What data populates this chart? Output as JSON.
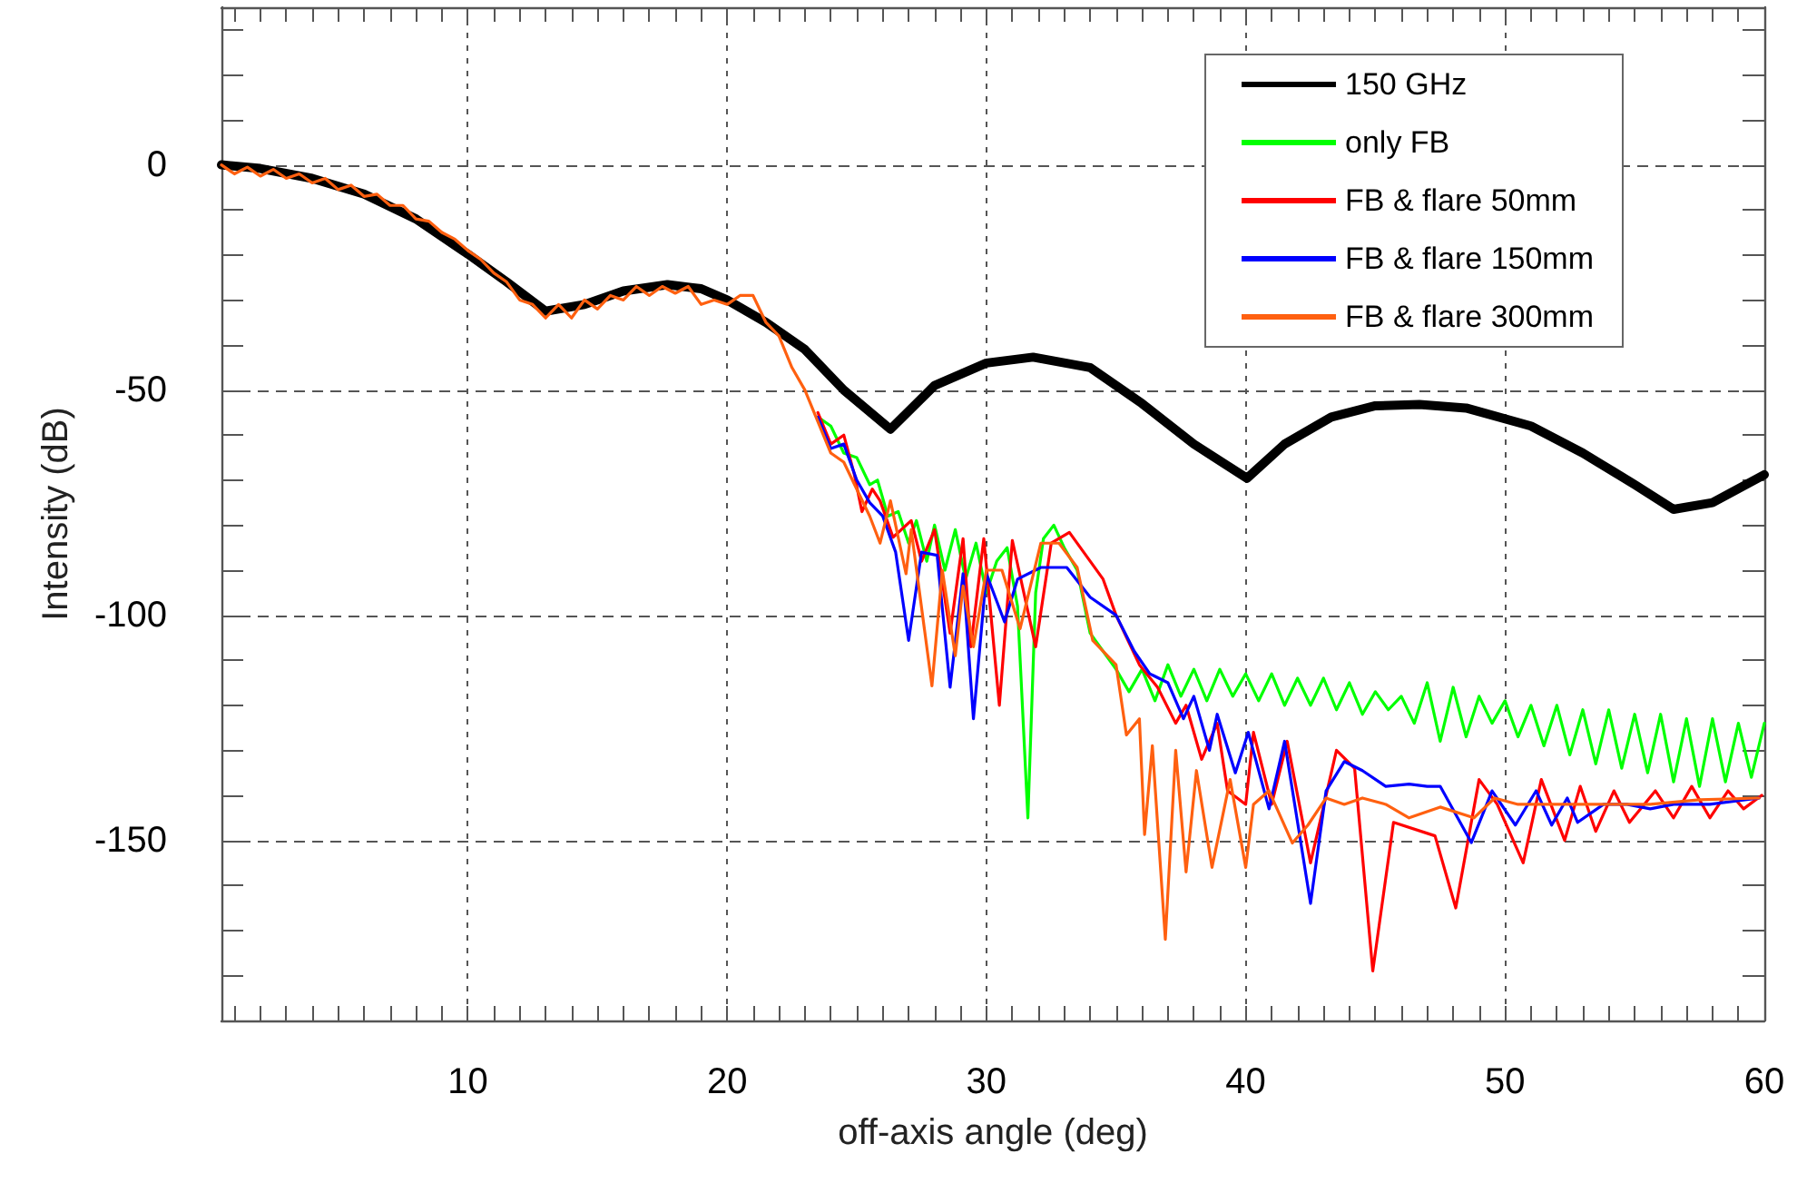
{
  "chart_data": {
    "type": "line",
    "xlabel": "off-axis angle (deg)",
    "ylabel": "Intensity (dB)",
    "xlim": [
      0.5,
      60
    ],
    "ylim": [
      -190,
      35
    ],
    "xticks": [
      {
        "value": 1,
        "label": null
      },
      {
        "value": 2,
        "label": null
      },
      {
        "value": 3,
        "label": null
      },
      {
        "value": 4,
        "label": null
      },
      {
        "value": 5,
        "label": null
      },
      {
        "value": 6,
        "label": null
      },
      {
        "value": 7,
        "label": null
      },
      {
        "value": 8,
        "label": null
      },
      {
        "value": 9,
        "label": null
      },
      10,
      {
        "value": 11,
        "label": null
      },
      {
        "value": 12,
        "label": null
      },
      {
        "value": 13,
        "label": null
      },
      {
        "value": 14,
        "label": null
      },
      {
        "value": 15,
        "label": null
      },
      {
        "value": 16,
        "label": null
      },
      {
        "value": 17,
        "label": null
      },
      {
        "value": 18,
        "label": null
      },
      {
        "value": 19,
        "label": null
      },
      20,
      {
        "value": 21,
        "label": null
      },
      {
        "value": 22,
        "label": null
      },
      {
        "value": 23,
        "label": null
      },
      {
        "value": 24,
        "label": null
      },
      {
        "value": 25,
        "label": null
      },
      {
        "value": 26,
        "label": null
      },
      {
        "value": 27,
        "label": null
      },
      {
        "value": 28,
        "label": null
      },
      {
        "value": 29,
        "label": null
      },
      30,
      {
        "value": 31,
        "label": null
      },
      {
        "value": 32,
        "label": null
      },
      {
        "value": 33,
        "label": null
      },
      {
        "value": 34,
        "label": null
      },
      {
        "value": 35,
        "label": null
      },
      {
        "value": 36,
        "label": null
      },
      {
        "value": 37,
        "label": null
      },
      {
        "value": 38,
        "label": null
      },
      {
        "value": 39,
        "label": null
      },
      40,
      {
        "value": 41,
        "label": null
      },
      {
        "value": 42,
        "label": null
      },
      {
        "value": 43,
        "label": null
      },
      {
        "value": 44,
        "label": null
      },
      {
        "value": 45,
        "label": null
      },
      {
        "value": 46,
        "label": null
      },
      {
        "value": 47,
        "label": null
      },
      {
        "value": 48,
        "label": null
      },
      {
        "value": 49,
        "label": null
      },
      50,
      {
        "value": 51,
        "label": null
      },
      {
        "value": 52,
        "label": null
      },
      {
        "value": 53,
        "label": null
      },
      {
        "value": 54,
        "label": null
      },
      {
        "value": 55,
        "label": null
      },
      {
        "value": 56,
        "label": null
      },
      {
        "value": 57,
        "label": null
      },
      {
        "value": 58,
        "label": null
      },
      {
        "value": 59,
        "label": null
      },
      60
    ],
    "yticks": [
      {
        "value": -180,
        "label": null
      },
      {
        "value": -170,
        "label": null
      },
      {
        "value": -160,
        "label": null
      },
      -150,
      {
        "value": -140,
        "label": null
      },
      {
        "value": -130,
        "label": null
      },
      {
        "value": -120,
        "label": null
      },
      {
        "value": -110,
        "label": null
      },
      -100,
      {
        "value": -90,
        "label": null
      },
      {
        "value": -80,
        "label": null
      },
      {
        "value": -70,
        "label": null
      },
      {
        "value": -60,
        "label": null
      },
      -50,
      {
        "value": -40,
        "label": null
      },
      {
        "value": -30,
        "label": null
      },
      {
        "value": -20,
        "label": null
      },
      {
        "value": -10,
        "label": null
      },
      0,
      {
        "value": 10,
        "label": null
      },
      {
        "value": 20,
        "label": null
      },
      {
        "value": 30,
        "label": null
      }
    ],
    "grid": true,
    "legend": "top right",
    "marker": "none",
    "line_style": "solid",
    "series": [
      {
        "name": "150 GHz",
        "color": "#000000",
        "x": [
          0.5,
          2,
          4,
          6,
          8,
          10,
          11.5,
          13,
          14.5,
          16,
          17.7,
          19,
          20,
          21.5,
          23,
          24.5,
          26.3,
          28,
          30,
          31.8,
          34,
          36,
          38,
          40.05,
          41.5,
          43.3,
          45,
          46.7,
          48.5,
          51,
          53,
          55,
          56.5,
          58,
          60
        ],
        "values": [
          0,
          -0.8,
          -3,
          -6.5,
          -12,
          -19.8,
          -26,
          -32.5,
          -31,
          -28,
          -26.6,
          -27.5,
          -30,
          -35,
          -41,
          -50,
          -58.7,
          -49,
          -44,
          -42.7,
          -45,
          -53,
          -62,
          -69.6,
          -62,
          -56,
          -53.5,
          -53.2,
          -54,
          -58,
          -64,
          -71,
          -76.5,
          -75,
          -68.8
        ]
      },
      {
        "name": "only FB",
        "color": "#00ff00",
        "x": [
          23.5,
          24,
          24.5,
          25,
          25.5,
          25.8,
          26.2,
          26.6,
          27,
          27.3,
          27.7,
          28,
          28.4,
          28.8,
          29.2,
          29.6,
          30,
          30.4,
          30.8,
          31.2,
          31.6,
          31.9,
          32.2,
          32.6,
          33,
          33.5,
          34,
          34.5,
          35,
          35.5,
          36,
          36.5,
          37,
          37.5,
          38,
          38.5,
          39,
          39.5,
          40,
          40.5,
          41,
          41.5,
          42,
          42.5,
          43,
          43.5,
          44,
          44.5,
          45,
          45.5,
          46,
          46.5,
          47,
          47.5,
          48,
          48.5,
          49,
          49.5,
          50,
          50.5,
          51,
          51.5,
          52,
          52.5,
          53,
          53.5,
          54,
          54.5,
          55,
          55.5,
          56,
          56.5,
          57,
          57.5,
          58,
          58.5,
          59,
          59.5,
          60
        ],
        "values": [
          -56,
          -58,
          -64,
          -65,
          -71,
          -70,
          -78,
          -77,
          -84,
          -79,
          -88,
          -80,
          -90,
          -81,
          -92,
          -84,
          -95,
          -88,
          -85,
          -98,
          -145,
          -95,
          -83,
          -80,
          -85,
          -90,
          -104,
          -108,
          -112,
          -117,
          -112,
          -119,
          -111,
          -118,
          -112,
          -119,
          -112,
          -118,
          -113,
          -119,
          -113,
          -120,
          -114,
          -120,
          -114,
          -121,
          -115,
          -122,
          -117,
          -121,
          -118,
          -124,
          -115,
          -128,
          -116,
          -127,
          -118,
          -124,
          -119,
          -127,
          -120,
          -129,
          -120,
          -131,
          -121,
          -133,
          -121,
          -134,
          -122,
          -135,
          -122,
          -137,
          -123,
          -138,
          -123,
          -137,
          -124,
          -136,
          -124
        ]
      },
      {
        "name": "FB & flare 50mm",
        "color": "#ff0000",
        "x": [
          23.5,
          24,
          24.5,
          24.9,
          25.2,
          25.6,
          25.9,
          26.4,
          27.1,
          27.5,
          28,
          28.6,
          29.1,
          29.4,
          29.9,
          30.5,
          31,
          31.9,
          32.5,
          33.2,
          34.5,
          35,
          35.9,
          36.6,
          37.3,
          37.7,
          38.3,
          38.9,
          39.3,
          40,
          40.3,
          41,
          41.6,
          42.5,
          43.5,
          44.2,
          44.9,
          45.7,
          47.3,
          48.1,
          49,
          49.7,
          50.7,
          51.4,
          52.3,
          52.9,
          53.5,
          54.2,
          54.8,
          55.8,
          56.5,
          57.2,
          57.9,
          58.6,
          59.2,
          59.9
        ],
        "values": [
          -55,
          -62,
          -60,
          -68.6,
          -77,
          -72,
          -74.6,
          -82.7,
          -79,
          -88,
          -81,
          -104,
          -83,
          -107,
          -83,
          -120,
          -83.4,
          -107,
          -84,
          -81.6,
          -92,
          -100,
          -111,
          -116,
          -124,
          -120,
          -132,
          -124,
          -139,
          -142,
          -126,
          -142,
          -128,
          -155,
          -130,
          -134,
          -179,
          -146,
          -149,
          -165,
          -136.5,
          -142,
          -155,
          -136.5,
          -150,
          -138,
          -148,
          -139,
          -146,
          -139,
          -145,
          -138,
          -145,
          -139,
          -143,
          -140
        ]
      },
      {
        "name": "FB & flare 150mm",
        "color": "#0000ff",
        "x": [
          23.5,
          24,
          24.5,
          25,
          25.5,
          26,
          26.5,
          27,
          27.5,
          28.1,
          28.6,
          29.1,
          29.5,
          30,
          30.7,
          31.2,
          32.1,
          33.1,
          34,
          35,
          35.7,
          36.3,
          37,
          37.6,
          38,
          38.6,
          38.9,
          39.6,
          40.1,
          40.9,
          41.5,
          42.5,
          43.1,
          43.8,
          44.5,
          45.4,
          46.3,
          47,
          47.5,
          48.7,
          49.5,
          50.4,
          51.2,
          51.8,
          52.4,
          52.8,
          53.8,
          54.7,
          55.6,
          56.5,
          57.9,
          59.8
        ],
        "values": [
          -56,
          -63,
          -62,
          -70,
          -75,
          -78,
          -86,
          -105.6,
          -86,
          -86.7,
          -116,
          -90.8,
          -123,
          -90.8,
          -101.5,
          -92,
          -89.4,
          -89.4,
          -96,
          -100,
          -108,
          -113,
          -115,
          -123,
          -118,
          -130,
          -122,
          -135,
          -126,
          -143,
          -128,
          -164,
          -139,
          -132.5,
          -134.5,
          -138,
          -137.5,
          -138,
          -138,
          -150.5,
          -139,
          -146.6,
          -139,
          -146.6,
          -140.6,
          -146,
          -142,
          -142,
          -143,
          -142,
          -142,
          -140.6
        ]
      },
      {
        "name": "FB & flare 300mm",
        "color": "#ff6010",
        "x": [
          0.5,
          1,
          1.5,
          2,
          2.5,
          3,
          3.5,
          4,
          4.5,
          5,
          5.5,
          6,
          6.5,
          7,
          7.5,
          8,
          8.5,
          9,
          9.5,
          10,
          10.5,
          11,
          11.5,
          12,
          12.5,
          13,
          13.5,
          14,
          14.5,
          15,
          15.5,
          16,
          16.5,
          17,
          17.5,
          18,
          18.5,
          19,
          19.5,
          20,
          20.5,
          21,
          21.5,
          22,
          22.5,
          23,
          23.5,
          24,
          24.5,
          25,
          25.5,
          25.9,
          26.3,
          26.9,
          27.1,
          27.9,
          28.3,
          28.8,
          29.1,
          29.5,
          30,
          30.6,
          31.3,
          32.1,
          32.8,
          33.5,
          34.1,
          35,
          35.4,
          35.9,
          36.1,
          36.4,
          36.9,
          37.3,
          37.7,
          38.1,
          38.7,
          39.4,
          40,
          40.3,
          40.9,
          41.8,
          42.4,
          43.1,
          43.8,
          44.5,
          45.4,
          46.3,
          47.5,
          48.8,
          49.6,
          50.5,
          51.9,
          53.8,
          55.6,
          57.5,
          59.8
        ],
        "values": [
          0,
          -2,
          -0.5,
          -2.5,
          -1,
          -3,
          -2,
          -4,
          -3,
          -5.5,
          -4.5,
          -7,
          -6.5,
          -9,
          -9,
          -12,
          -12.5,
          -15,
          -16.5,
          -19,
          -21,
          -24,
          -26,
          -30,
          -31,
          -34,
          -31,
          -34,
          -30,
          -32,
          -29,
          -30,
          -27,
          -29,
          -27,
          -28.5,
          -27,
          -31,
          -30,
          -31,
          -29,
          -29,
          -35,
          -38,
          -45,
          -50,
          -57,
          -64,
          -66,
          -72,
          -78,
          -84,
          -74.6,
          -90.8,
          -81,
          -115.7,
          -90,
          -109,
          -93.5,
          -107,
          -90,
          -90,
          -103,
          -84,
          -84,
          -89.4,
          -105.6,
          -111,
          -126.6,
          -123,
          -148.7,
          -129,
          -172,
          -130,
          -157,
          -134.5,
          -156,
          -136.5,
          -156,
          -142,
          -139,
          -150.6,
          -146.6,
          -140.6,
          -142,
          -140.6,
          -142,
          -145,
          -142.6,
          -145,
          -140.6,
          -142,
          -142,
          -142,
          -142,
          -141,
          -140.6
        ]
      }
    ]
  }
}
